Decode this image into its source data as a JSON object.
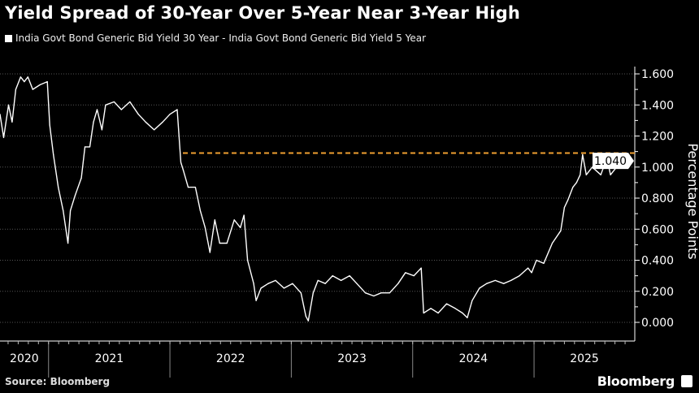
{
  "chart_data": {
    "type": "line",
    "title": "Yield Spread of 30-Year Over 5-Year Near 3-Year High",
    "legend": [
      "India Govt Bond Generic Bid Yield 30 Year - India Govt Bond Generic Bid Yield 5 Year"
    ],
    "legend_placement": "top-left",
    "ylabel": "Percentage Points",
    "ylim": [
      0,
      1.6
    ],
    "yticks": [
      "0.000",
      "0.200",
      "0.400",
      "0.600",
      "0.800",
      "1.000",
      "1.200",
      "1.400",
      "1.600"
    ],
    "xlim": [
      2020.6,
      2025.83
    ],
    "xticks": [
      "2020",
      "2021",
      "2022",
      "2023",
      "2024",
      "2025"
    ],
    "grid": true,
    "last_value_label": "1.040",
    "reference_line": {
      "value": 1.09,
      "color": "#f0a030",
      "style": "dashed"
    },
    "line_color": "#ffffff",
    "series": [
      {
        "name": "India Govt Bond Generic Bid Yield 30 Year - India Govt Bond Generic Bid Yield 5 Year",
        "x": [
          2020.6,
          2020.63,
          2020.67,
          2020.7,
          2020.73,
          2020.77,
          2020.8,
          2020.83,
          2020.87,
          2020.93,
          2020.99,
          2021.01,
          2021.04,
          2021.08,
          2021.12,
          2021.16,
          2021.18,
          2021.22,
          2021.27,
          2021.3,
          2021.34,
          2021.37,
          2021.4,
          2021.44,
          2021.47,
          2021.54,
          2021.6,
          2021.67,
          2021.74,
          2021.8,
          2021.87,
          2021.94,
          2022.0,
          2022.06,
          2022.09,
          2022.11,
          2022.15,
          2022.21,
          2022.25,
          2022.29,
          2022.33,
          2022.37,
          2022.41,
          2022.47,
          2022.53,
          2022.58,
          2022.61,
          2022.64,
          2022.69,
          2022.71,
          2022.75,
          2022.81,
          2022.87,
          2022.94,
          2023.01,
          2023.08,
          2023.12,
          2023.14,
          2023.18,
          2023.22,
          2023.28,
          2023.34,
          2023.41,
          2023.48,
          2023.54,
          2023.61,
          2023.68,
          2023.74,
          2023.81,
          2023.88,
          2023.94,
          2024.01,
          2024.07,
          2024.09,
          2024.15,
          2024.21,
          2024.28,
          2024.35,
          2024.41,
          2024.45,
          2024.49,
          2024.55,
          2024.61,
          2024.68,
          2024.75,
          2024.81,
          2024.88,
          2024.95,
          2024.98,
          2025.02,
          2025.08,
          2025.15,
          2025.22,
          2025.25,
          2025.28,
          2025.32,
          2025.35,
          2025.38,
          2025.4,
          2025.43,
          2025.48,
          2025.55,
          2025.6,
          2025.63,
          2025.68,
          2025.72
        ],
        "values": [
          1.34,
          1.19,
          1.4,
          1.29,
          1.5,
          1.58,
          1.55,
          1.58,
          1.5,
          1.53,
          1.55,
          1.27,
          1.08,
          0.87,
          0.72,
          0.51,
          0.72,
          0.82,
          0.93,
          1.13,
          1.13,
          1.29,
          1.37,
          1.24,
          1.4,
          1.42,
          1.37,
          1.42,
          1.34,
          1.29,
          1.24,
          1.29,
          1.34,
          1.37,
          1.03,
          0.98,
          0.87,
          0.87,
          0.72,
          0.61,
          0.45,
          0.66,
          0.51,
          0.51,
          0.66,
          0.61,
          0.69,
          0.4,
          0.25,
          0.14,
          0.22,
          0.25,
          0.27,
          0.22,
          0.25,
          0.19,
          0.04,
          0.01,
          0.19,
          0.27,
          0.25,
          0.3,
          0.27,
          0.3,
          0.25,
          0.19,
          0.17,
          0.19,
          0.19,
          0.25,
          0.32,
          0.3,
          0.35,
          0.06,
          0.09,
          0.06,
          0.12,
          0.09,
          0.06,
          0.03,
          0.14,
          0.22,
          0.25,
          0.27,
          0.25,
          0.27,
          0.3,
          0.35,
          0.32,
          0.4,
          0.38,
          0.51,
          0.59,
          0.74,
          0.79,
          0.87,
          0.9,
          0.95,
          1.08,
          0.95,
          1.0,
          0.95,
          1.06,
          0.95,
          1.0,
          1.04
        ]
      }
    ]
  },
  "footer": {
    "source": "Source: Bloomberg",
    "brand": "Bloomberg"
  }
}
